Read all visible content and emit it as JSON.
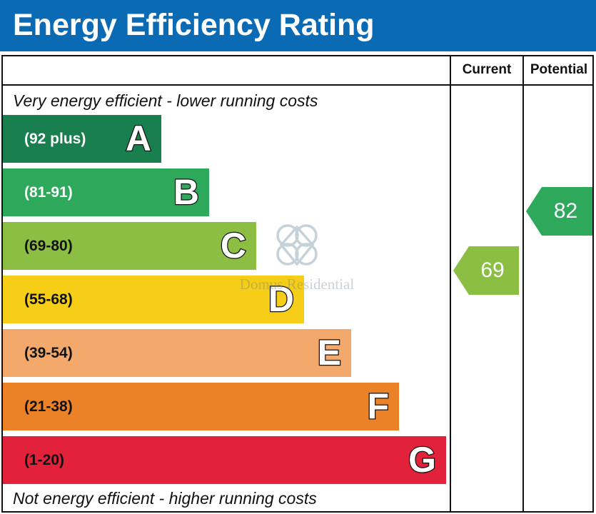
{
  "header": {
    "title": "Energy Efficiency Rating"
  },
  "columns": {
    "current": "Current",
    "potential": "Potential"
  },
  "notes": {
    "top": "Very energy efficient - lower running costs",
    "bottom": "Not energy efficient - higher running costs"
  },
  "watermark": {
    "text": "Domus Residential"
  },
  "chart_data": {
    "type": "table",
    "title": "Energy Efficiency Rating",
    "bands": [
      {
        "letter": "A",
        "range": "(92 plus)",
        "color": "#1a7f4f",
        "range_color": "#ffffff"
      },
      {
        "letter": "B",
        "range": "(81-91)",
        "color": "#2ea95c",
        "range_color": "#ffffff"
      },
      {
        "letter": "C",
        "range": "(69-80)",
        "color": "#8cbe44",
        "range_color": "#111111"
      },
      {
        "letter": "D",
        "range": "(55-68)",
        "color": "#f6cd17",
        "range_color": "#111111"
      },
      {
        "letter": "E",
        "range": "(39-54)",
        "color": "#f2a96b",
        "range_color": "#111111"
      },
      {
        "letter": "F",
        "range": "(21-38)",
        "color": "#ec8228",
        "range_color": "#111111"
      },
      {
        "letter": "G",
        "range": "(1-20)",
        "color": "#e2213b",
        "range_color": "#111111"
      }
    ],
    "current": {
      "value": 69,
      "band": "C",
      "color": "#8cbe44"
    },
    "potential": {
      "value": 82,
      "band": "B",
      "color": "#2ea95c"
    }
  }
}
